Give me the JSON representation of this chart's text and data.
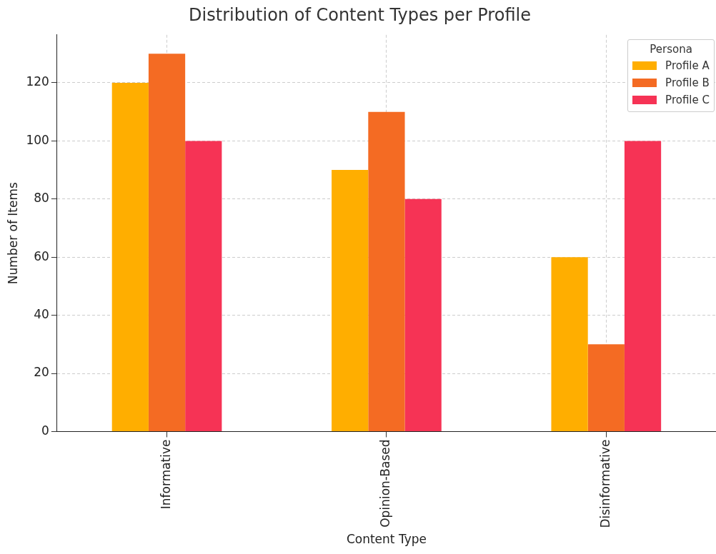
{
  "chart_data": {
    "type": "bar",
    "title": "Distribution of Content Types per Profile",
    "xlabel": "Content Type",
    "ylabel": "Number of Items",
    "legend_title": "Persona",
    "categories": [
      "Informative",
      "Opinion-Based",
      "Disinformative"
    ],
    "series": [
      {
        "name": "Profile A",
        "color": "#ffae00",
        "values": [
          120,
          90,
          60
        ]
      },
      {
        "name": "Profile B",
        "color": "#f46b23",
        "values": [
          130,
          110,
          30
        ]
      },
      {
        "name": "Profile C",
        "color": "#f63355",
        "values": [
          100,
          80,
          100
        ]
      }
    ],
    "ylim": [
      0,
      136.5
    ],
    "yticks": [
      0,
      20,
      40,
      60,
      80,
      100,
      120
    ],
    "grid": true,
    "legend": "top right"
  }
}
